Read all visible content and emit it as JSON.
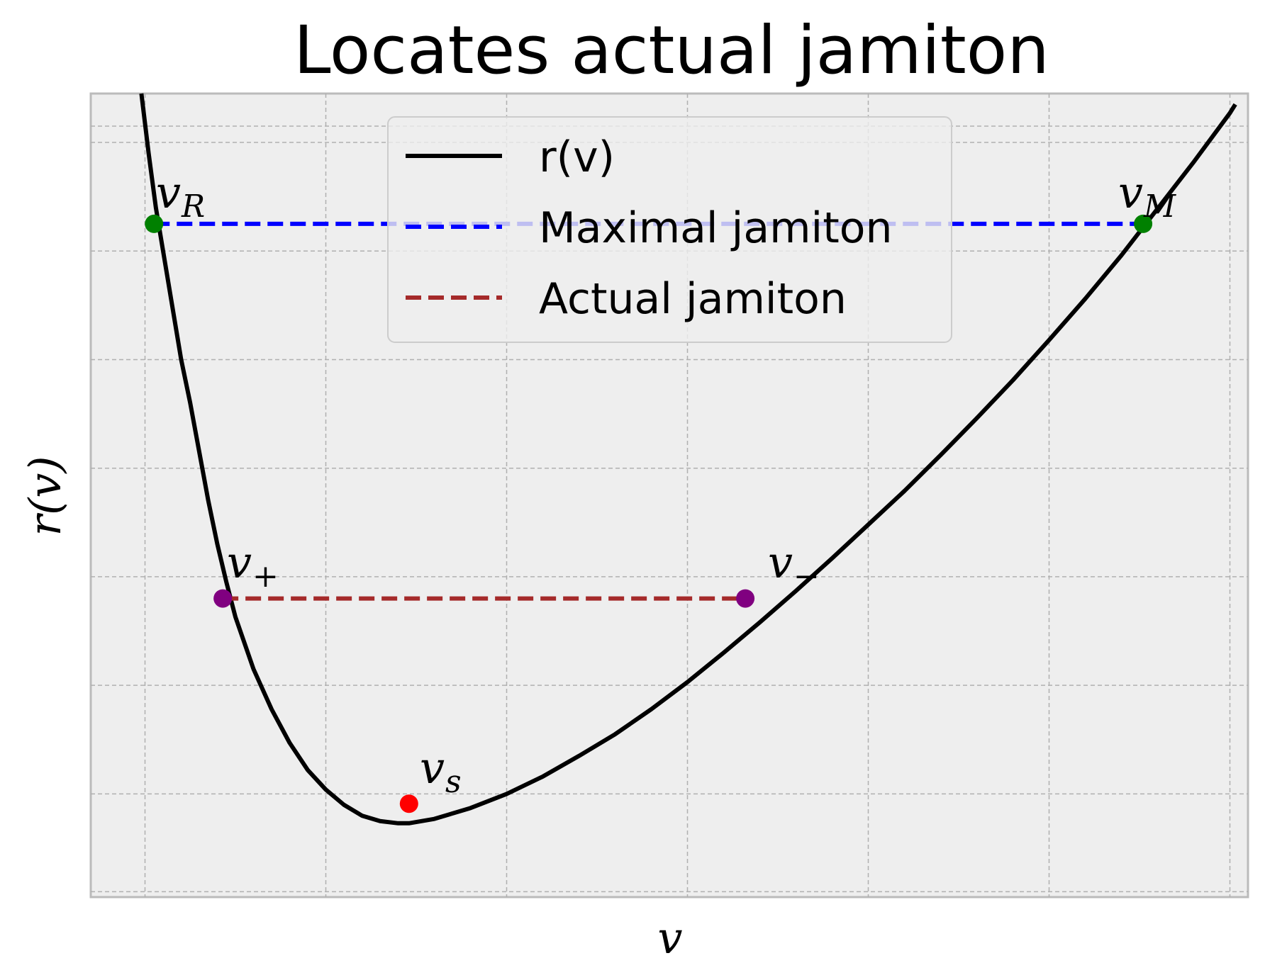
{
  "chart_data": {
    "type": "line",
    "title": "Locates actual jamiton",
    "xlabel": "v",
    "ylabel": "r(v)",
    "xlim": [
      0.7,
      7.1
    ],
    "ylim": [
      -0.95,
      6.45
    ],
    "grid": true,
    "x_gridlines": [
      1,
      2,
      3,
      4,
      5,
      6,
      7
    ],
    "y_gridlines": [
      -0.9,
      0,
      1,
      2,
      3,
      4,
      5,
      6,
      6.15
    ],
    "legend": {
      "placement": "upper-center",
      "entries": [
        {
          "label": "r(v)",
          "color": "#000000",
          "style": "solid"
        },
        {
          "label": "Maximal jamiton",
          "color": "#0000ff",
          "style": "dashed"
        },
        {
          "label": "Actual jamiton",
          "color": "#a52a2a",
          "style": "dashed"
        }
      ]
    },
    "series": [
      {
        "name": "r(v)",
        "color": "#000000",
        "style": "solid",
        "x": [
          0.98,
          1.02,
          1.06,
          1.1,
          1.15,
          1.2,
          1.25,
          1.3,
          1.35,
          1.4,
          1.45,
          1.5,
          1.6,
          1.7,
          1.8,
          1.9,
          2.0,
          2.1,
          2.2,
          2.3,
          2.4,
          2.46,
          2.6,
          2.8,
          3.0,
          3.2,
          3.4,
          3.6,
          3.8,
          4.0,
          4.2,
          4.4,
          4.6,
          4.8,
          5.0,
          5.2,
          5.4,
          5.6,
          5.8,
          6.0,
          6.2,
          6.4,
          6.6,
          6.8,
          7.0,
          7.03
        ],
        "y": [
          6.45,
          5.9,
          5.4,
          5.0,
          4.5,
          4.0,
          3.6,
          3.15,
          2.7,
          2.3,
          1.95,
          1.63,
          1.15,
          0.78,
          0.47,
          0.22,
          0.04,
          -0.1,
          -0.2,
          -0.25,
          -0.27,
          -0.27,
          -0.23,
          -0.13,
          0.0,
          0.16,
          0.35,
          0.55,
          0.78,
          1.03,
          1.3,
          1.58,
          1.87,
          2.17,
          2.48,
          2.79,
          3.12,
          3.46,
          3.81,
          4.18,
          4.56,
          4.96,
          5.39,
          5.82,
          6.27,
          6.35
        ]
      },
      {
        "name": "Maximal jamiton",
        "color": "#0000ff",
        "style": "dashed",
        "x": [
          1.05,
          6.52
        ],
        "y": [
          5.25,
          5.25
        ]
      },
      {
        "name": "Actual jamiton",
        "color": "#a52a2a",
        "style": "dashed",
        "x": [
          1.43,
          4.32
        ],
        "y": [
          1.8,
          1.8
        ]
      }
    ],
    "points": [
      {
        "label": "v_R",
        "x": 1.05,
        "y": 5.25,
        "color": "#008000"
      },
      {
        "label": "v_M",
        "x": 6.52,
        "y": 5.25,
        "color": "#008000"
      },
      {
        "label": "v_+",
        "x": 1.43,
        "y": 1.8,
        "color": "#800080"
      },
      {
        "label": "v_-",
        "x": 4.32,
        "y": 1.8,
        "color": "#800080"
      },
      {
        "label": "v_s",
        "x": 2.46,
        "y": -0.09,
        "color": "#ff0000"
      }
    ]
  }
}
